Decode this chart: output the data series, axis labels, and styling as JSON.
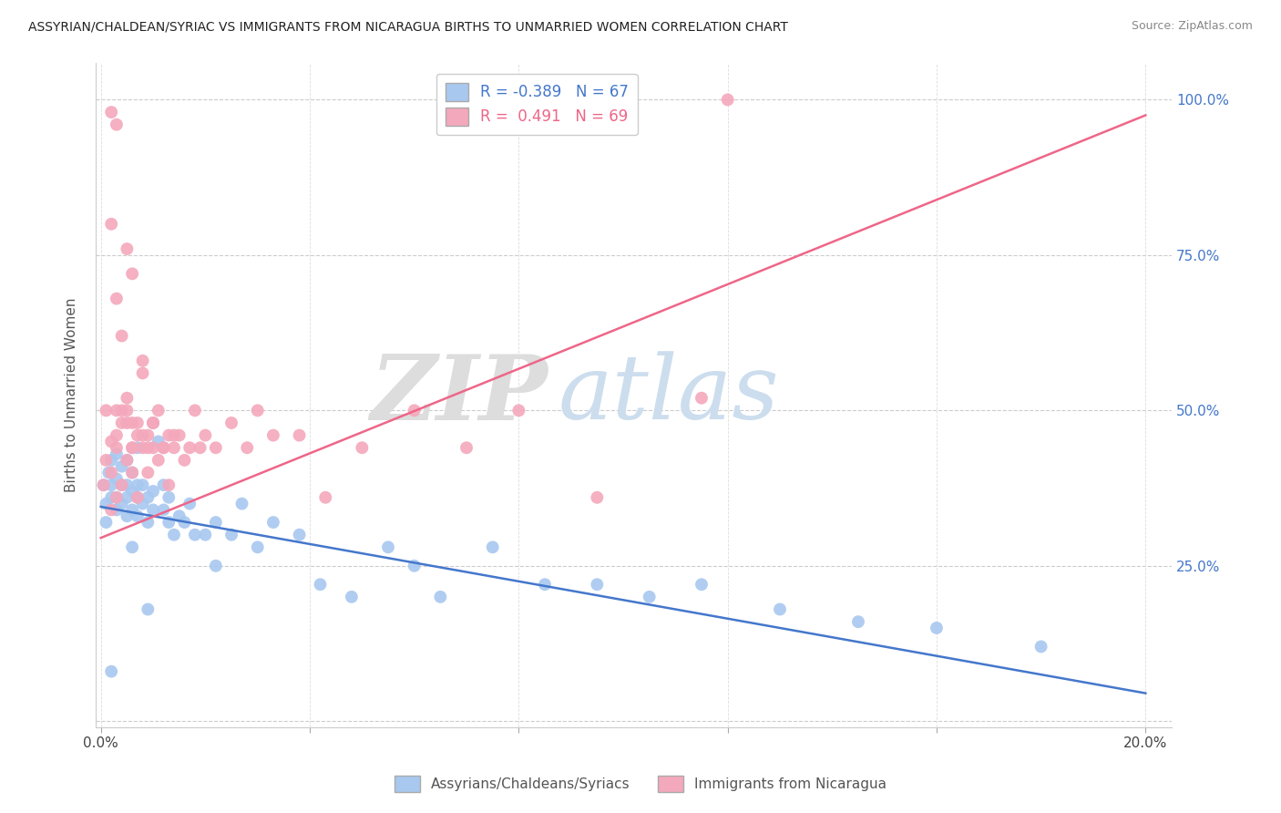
{
  "title": "ASSYRIAN/CHALDEAN/SYRIAC VS IMMIGRANTS FROM NICARAGUA BIRTHS TO UNMARRIED WOMEN CORRELATION CHART",
  "source": "Source: ZipAtlas.com",
  "xlabel_blue": "Assyrians/Chaldeans/Syriacs",
  "xlabel_pink": "Immigrants from Nicaragua",
  "ylabel": "Births to Unmarried Women",
  "legend_blue_r": "-0.389",
  "legend_blue_n": "67",
  "legend_pink_r": "0.491",
  "legend_pink_n": "69",
  "blue_color": "#A8C8F0",
  "pink_color": "#F4A8BC",
  "blue_line_color": "#4477CC",
  "pink_line_color": "#EE6688",
  "blue_line_x0": 0.0,
  "blue_line_x1": 0.2,
  "blue_line_y0": 0.345,
  "blue_line_y1": 0.045,
  "pink_line_x0": 0.0,
  "pink_line_x1": 0.2,
  "pink_line_y0": 0.295,
  "pink_line_y1": 0.975,
  "blue_scatter_x": [
    0.0005,
    0.001,
    0.001,
    0.0015,
    0.002,
    0.002,
    0.002,
    0.003,
    0.003,
    0.003,
    0.003,
    0.004,
    0.004,
    0.004,
    0.005,
    0.005,
    0.005,
    0.005,
    0.006,
    0.006,
    0.006,
    0.007,
    0.007,
    0.007,
    0.007,
    0.008,
    0.008,
    0.009,
    0.009,
    0.01,
    0.01,
    0.01,
    0.011,
    0.012,
    0.012,
    0.013,
    0.013,
    0.014,
    0.015,
    0.016,
    0.017,
    0.018,
    0.02,
    0.022,
    0.025,
    0.027,
    0.03,
    0.033,
    0.038,
    0.042,
    0.048,
    0.055,
    0.06,
    0.065,
    0.075,
    0.085,
    0.095,
    0.105,
    0.115,
    0.13,
    0.145,
    0.16,
    0.18,
    0.002,
    0.006,
    0.009,
    0.022
  ],
  "blue_scatter_y": [
    0.38,
    0.32,
    0.35,
    0.4,
    0.36,
    0.38,
    0.42,
    0.34,
    0.36,
    0.39,
    0.43,
    0.35,
    0.38,
    0.41,
    0.33,
    0.36,
    0.38,
    0.42,
    0.34,
    0.37,
    0.4,
    0.33,
    0.36,
    0.38,
    0.44,
    0.35,
    0.38,
    0.32,
    0.36,
    0.34,
    0.37,
    0.48,
    0.45,
    0.34,
    0.38,
    0.32,
    0.36,
    0.3,
    0.33,
    0.32,
    0.35,
    0.3,
    0.3,
    0.32,
    0.3,
    0.35,
    0.28,
    0.32,
    0.3,
    0.22,
    0.2,
    0.28,
    0.25,
    0.2,
    0.28,
    0.22,
    0.22,
    0.2,
    0.22,
    0.18,
    0.16,
    0.15,
    0.12,
    0.08,
    0.28,
    0.18,
    0.25
  ],
  "pink_scatter_x": [
    0.0005,
    0.001,
    0.001,
    0.002,
    0.002,
    0.003,
    0.003,
    0.003,
    0.004,
    0.004,
    0.005,
    0.005,
    0.006,
    0.006,
    0.007,
    0.007,
    0.008,
    0.008,
    0.009,
    0.009,
    0.01,
    0.01,
    0.011,
    0.012,
    0.013,
    0.014,
    0.015,
    0.016,
    0.017,
    0.018,
    0.019,
    0.02,
    0.022,
    0.025,
    0.028,
    0.03,
    0.033,
    0.038,
    0.043,
    0.05,
    0.06,
    0.07,
    0.08,
    0.095,
    0.115,
    0.002,
    0.003,
    0.004,
    0.005,
    0.006,
    0.007,
    0.008,
    0.009,
    0.01,
    0.011,
    0.012,
    0.013,
    0.014,
    0.003,
    0.004,
    0.005,
    0.006,
    0.003,
    0.002,
    0.002,
    0.12,
    0.008,
    0.005,
    0.006
  ],
  "pink_scatter_y": [
    0.38,
    0.42,
    0.5,
    0.4,
    0.45,
    0.36,
    0.44,
    0.5,
    0.38,
    0.5,
    0.42,
    0.48,
    0.4,
    0.44,
    0.36,
    0.48,
    0.58,
    0.44,
    0.4,
    0.46,
    0.44,
    0.48,
    0.5,
    0.44,
    0.46,
    0.44,
    0.46,
    0.42,
    0.44,
    0.5,
    0.44,
    0.46,
    0.44,
    0.48,
    0.44,
    0.5,
    0.46,
    0.46,
    0.36,
    0.44,
    0.5,
    0.44,
    0.5,
    0.36,
    0.52,
    0.34,
    0.46,
    0.48,
    0.52,
    0.44,
    0.46,
    0.56,
    0.44,
    0.48,
    0.42,
    0.44,
    0.38,
    0.46,
    0.68,
    0.62,
    0.76,
    0.72,
    0.96,
    0.98,
    0.8,
    1.0,
    0.46,
    0.5,
    0.48
  ],
  "watermark_zip": "ZIP",
  "watermark_atlas": "atlas",
  "background_color": "#ffffff",
  "figsize": [
    14.06,
    8.92
  ],
  "xlim": [
    -0.001,
    0.205
  ],
  "ylim": [
    -0.01,
    1.06
  ]
}
